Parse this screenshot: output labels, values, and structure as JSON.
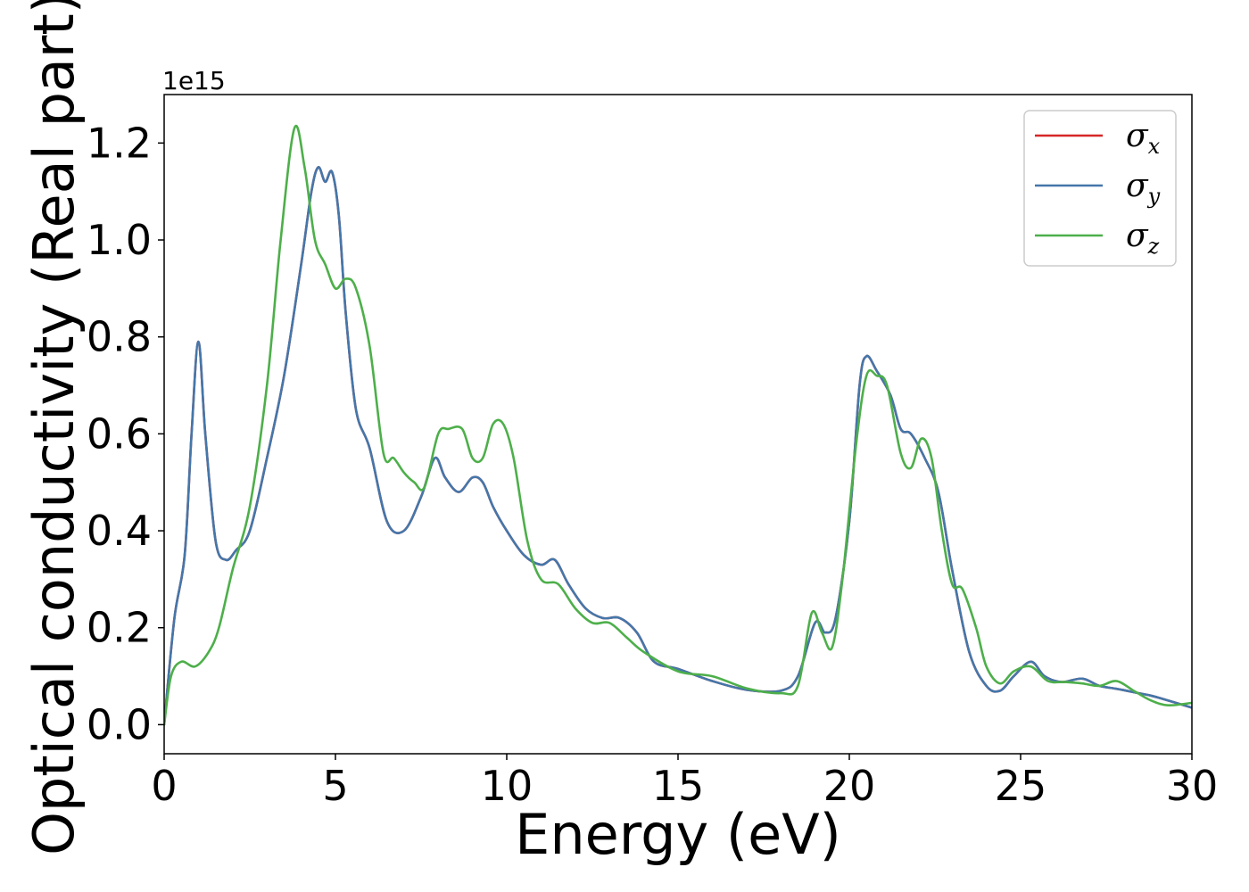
{
  "chart_data": {
    "type": "line",
    "title": "",
    "xlabel": "Energy (eV)",
    "ylabel": "Optical conductivity (Real part)",
    "y_offset_label": "1e15",
    "xlim": [
      0,
      30
    ],
    "ylim": [
      -0.06,
      1.3
    ],
    "xticks": [
      0,
      5,
      10,
      15,
      20,
      25,
      30
    ],
    "yticks": [
      0.0,
      0.2,
      0.4,
      0.6,
      0.8,
      1.0,
      1.2
    ],
    "xtick_labels": [
      "0",
      "5",
      "10",
      "15",
      "20",
      "25",
      "30"
    ],
    "ytick_labels": [
      "0.0",
      "0.2",
      "0.4",
      "0.6",
      "0.8",
      "1.0",
      "1.2"
    ],
    "grid": false,
    "legend_position": "top-right",
    "series": [
      {
        "name": "σx",
        "legend_base": "σ",
        "legend_sub": "x",
        "color": "#d62728",
        "x": [
          0,
          0.3,
          0.6,
          0.8,
          1.0,
          1.2,
          1.5,
          1.8,
          2.1,
          2.5,
          3.0,
          3.5,
          4.0,
          4.3,
          4.5,
          4.7,
          4.9,
          5.1,
          5.3,
          5.6,
          6.0,
          6.5,
          7.0,
          7.5,
          7.9,
          8.2,
          8.6,
          9.0,
          9.3,
          9.6,
          10.0,
          10.5,
          11.0,
          11.4,
          11.8,
          12.3,
          12.8,
          13.3,
          13.8,
          14.3,
          15.0,
          16.0,
          17.0,
          18.0,
          18.5,
          19.0,
          19.3,
          19.6,
          20.0,
          20.3,
          20.5,
          20.8,
          21.2,
          21.5,
          21.8,
          22.2,
          22.6,
          23.0,
          23.5,
          24.0,
          24.4,
          24.8,
          25.3,
          25.7,
          26.2,
          26.8,
          27.3,
          27.8,
          28.3,
          28.8,
          29.3,
          30.0
        ],
        "y": [
          0.0,
          0.22,
          0.35,
          0.6,
          0.79,
          0.6,
          0.38,
          0.34,
          0.36,
          0.4,
          0.55,
          0.72,
          0.95,
          1.1,
          1.15,
          1.12,
          1.14,
          1.05,
          0.85,
          0.65,
          0.57,
          0.42,
          0.4,
          0.47,
          0.55,
          0.51,
          0.48,
          0.51,
          0.5,
          0.45,
          0.4,
          0.35,
          0.33,
          0.34,
          0.29,
          0.24,
          0.22,
          0.22,
          0.19,
          0.13,
          0.115,
          0.09,
          0.072,
          0.07,
          0.1,
          0.21,
          0.19,
          0.22,
          0.42,
          0.7,
          0.76,
          0.73,
          0.68,
          0.61,
          0.6,
          0.55,
          0.48,
          0.32,
          0.15,
          0.08,
          0.07,
          0.1,
          0.13,
          0.1,
          0.088,
          0.095,
          0.08,
          0.074,
          0.067,
          0.06,
          0.05,
          0.035
        ]
      },
      {
        "name": "σy",
        "legend_base": "σ",
        "legend_sub": "y",
        "color": "#4477aa",
        "x": [
          0,
          0.3,
          0.6,
          0.8,
          1.0,
          1.2,
          1.5,
          1.8,
          2.1,
          2.5,
          3.0,
          3.5,
          4.0,
          4.3,
          4.5,
          4.7,
          4.9,
          5.1,
          5.3,
          5.6,
          6.0,
          6.5,
          7.0,
          7.5,
          7.9,
          8.2,
          8.6,
          9.0,
          9.3,
          9.6,
          10.0,
          10.5,
          11.0,
          11.4,
          11.8,
          12.3,
          12.8,
          13.3,
          13.8,
          14.3,
          15.0,
          16.0,
          17.0,
          18.0,
          18.5,
          19.0,
          19.3,
          19.6,
          20.0,
          20.3,
          20.5,
          20.8,
          21.2,
          21.5,
          21.8,
          22.2,
          22.6,
          23.0,
          23.5,
          24.0,
          24.4,
          24.8,
          25.3,
          25.7,
          26.2,
          26.8,
          27.3,
          27.8,
          28.3,
          28.8,
          29.3,
          30.0
        ],
        "y": [
          0.0,
          0.22,
          0.35,
          0.6,
          0.79,
          0.6,
          0.38,
          0.34,
          0.36,
          0.4,
          0.55,
          0.72,
          0.95,
          1.1,
          1.15,
          1.12,
          1.14,
          1.05,
          0.85,
          0.65,
          0.57,
          0.42,
          0.4,
          0.47,
          0.55,
          0.51,
          0.48,
          0.51,
          0.5,
          0.45,
          0.4,
          0.35,
          0.33,
          0.34,
          0.29,
          0.24,
          0.22,
          0.22,
          0.19,
          0.13,
          0.115,
          0.09,
          0.072,
          0.07,
          0.1,
          0.21,
          0.19,
          0.22,
          0.42,
          0.7,
          0.76,
          0.73,
          0.68,
          0.61,
          0.6,
          0.55,
          0.48,
          0.32,
          0.15,
          0.08,
          0.07,
          0.1,
          0.13,
          0.1,
          0.088,
          0.095,
          0.08,
          0.074,
          0.067,
          0.06,
          0.05,
          0.035
        ]
      },
      {
        "name": "σz",
        "legend_base": "σ",
        "legend_sub": "z",
        "color": "#4daf4a",
        "x": [
          0,
          0.2,
          0.5,
          0.9,
          1.3,
          1.6,
          2.0,
          2.5,
          3.0,
          3.4,
          3.8,
          4.1,
          4.4,
          4.7,
          5.0,
          5.3,
          5.6,
          6.0,
          6.4,
          6.7,
          7.0,
          7.3,
          7.6,
          8.0,
          8.3,
          8.7,
          9.0,
          9.3,
          9.6,
          9.9,
          10.2,
          10.6,
          11.0,
          11.5,
          12.0,
          12.5,
          13.0,
          13.5,
          14.0,
          15.0,
          16.0,
          17.0,
          18.0,
          18.5,
          18.9,
          19.2,
          19.5,
          19.8,
          20.2,
          20.5,
          20.8,
          21.1,
          21.5,
          21.8,
          22.1,
          22.4,
          22.7,
          23.0,
          23.3,
          23.7,
          24.0,
          24.4,
          24.8,
          25.3,
          25.8,
          26.3,
          26.8,
          27.3,
          27.8,
          28.3,
          28.8,
          29.3,
          30.0
        ],
        "y": [
          0.0,
          0.1,
          0.13,
          0.12,
          0.15,
          0.2,
          0.32,
          0.45,
          0.7,
          1.0,
          1.23,
          1.15,
          1.0,
          0.95,
          0.9,
          0.92,
          0.9,
          0.78,
          0.56,
          0.55,
          0.52,
          0.5,
          0.49,
          0.6,
          0.61,
          0.61,
          0.55,
          0.55,
          0.62,
          0.62,
          0.55,
          0.38,
          0.3,
          0.29,
          0.24,
          0.21,
          0.21,
          0.18,
          0.15,
          0.11,
          0.1,
          0.075,
          0.065,
          0.08,
          0.23,
          0.19,
          0.16,
          0.3,
          0.58,
          0.72,
          0.72,
          0.7,
          0.56,
          0.53,
          0.59,
          0.55,
          0.4,
          0.29,
          0.28,
          0.2,
          0.12,
          0.085,
          0.11,
          0.12,
          0.09,
          0.088,
          0.085,
          0.08,
          0.09,
          0.07,
          0.05,
          0.04,
          0.045
        ]
      }
    ]
  }
}
